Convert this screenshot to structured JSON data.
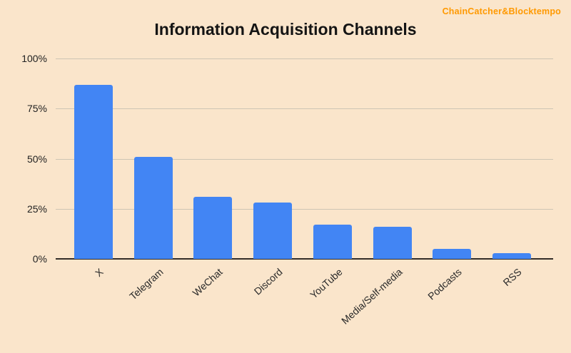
{
  "watermark": {
    "label": "ChainCatcher&Blocktempo",
    "color": "#ff9900"
  },
  "chart_data": {
    "type": "bar",
    "title": "Information Acquisition Channels",
    "categories": [
      "X",
      "Telegram",
      "WeChat",
      "Discord",
      "YouTube",
      "Media/Self-media",
      "Podcasts",
      "RSS"
    ],
    "values": [
      87,
      51,
      31,
      28,
      17,
      16,
      5,
      3
    ],
    "unit": "%",
    "xlabel": "",
    "ylabel": "",
    "ylim": [
      0,
      100
    ],
    "yticks": [
      0,
      25,
      50,
      75,
      100
    ],
    "ytick_labels": [
      "0%",
      "25%",
      "50%",
      "75%",
      "100%"
    ],
    "grid": true,
    "legend": "none",
    "colors": {
      "bar": "#4285f4",
      "background": "#fae5cb",
      "gridline": "#cdc5b4",
      "axis_line": "#322d28",
      "title_text": "#141414",
      "tick_text": "#222222",
      "watermark": "#ff9900"
    }
  }
}
